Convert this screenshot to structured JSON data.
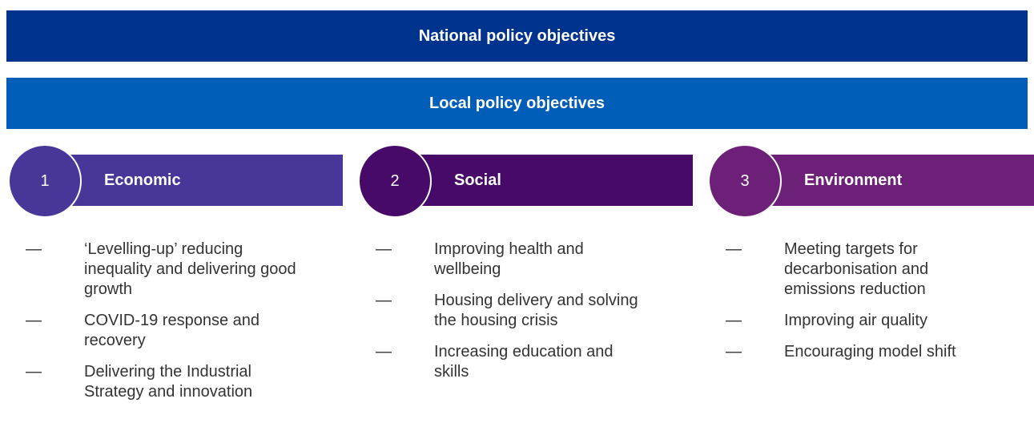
{
  "banners": [
    "National policy objectives",
    "Local policy objectives"
  ],
  "columns": [
    {
      "number": "1",
      "title": "Economic",
      "items": [
        "‘Levelling-up’ reducing inequality and delivering good growth",
        "COVID-19 response and recovery",
        "Delivering the Industrial Strategy and innovation"
      ]
    },
    {
      "number": "2",
      "title": "Social",
      "items": [
        "Improving health and wellbeing",
        "Housing delivery and solving the housing crisis",
        "Increasing education and skills"
      ]
    },
    {
      "number": "3",
      "title": "Environment",
      "items": [
        "Meeting targets for decarbonisation and emissions reduction",
        "Improving air quality",
        "Encouraging model shift"
      ]
    }
  ]
}
